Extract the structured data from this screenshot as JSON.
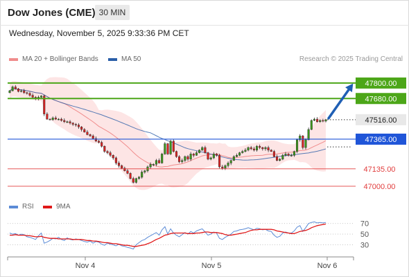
{
  "header": {
    "title": "Dow Jones (CME)",
    "timeframe": "30 MIN",
    "datetime": "Wednesday, November 5, 2025 9:33:36 PM CET"
  },
  "legend": {
    "items": [
      {
        "label": "MA 20 + Bollinger Bands",
        "color": "#f08c8c"
      },
      {
        "label": "MA 50",
        "color": "#2a5ea8"
      }
    ],
    "research": "Research © 2025 Trading Central"
  },
  "rsi_legend": {
    "items": [
      {
        "label": "RSI",
        "color": "#5b8bd6"
      },
      {
        "label": "9MA",
        "color": "#e01919"
      }
    ]
  },
  "chart_data": [
    {
      "type": "candlestick",
      "ylim": [
        46930,
        47880
      ],
      "x_labels": [
        "Nov 4",
        "Nov 5",
        "Nov 6"
      ],
      "levels": [
        {
          "label": "47800.00",
          "value": 47800,
          "style": "resistance",
          "color": "#4ca618"
        },
        {
          "label": "47680.00",
          "value": 47680,
          "style": "resistance",
          "color": "#4ca618"
        },
        {
          "label": "47516.00",
          "value": 47516,
          "style": "current",
          "color": "#333333"
        },
        {
          "label": "47365.00",
          "value": 47365,
          "style": "pivot",
          "color": "#1f55d8"
        },
        {
          "label": "47135.00",
          "value": 47135,
          "style": "support",
          "color": "#e13c3c"
        },
        {
          "label": "47000.00",
          "value": 47000,
          "style": "support",
          "color": "#e13c3c"
        }
      ],
      "closes": [
        47740,
        47770,
        47755,
        47735,
        47740,
        47725,
        47720,
        47705,
        47690,
        47680,
        47690,
        47700,
        47560,
        47520,
        47515,
        47530,
        47520,
        47520,
        47510,
        47500,
        47500,
        47490,
        47480,
        47475,
        47460,
        47440,
        47420,
        47400,
        47390,
        47370,
        47350,
        47340,
        47310,
        47270,
        47260,
        47240,
        47220,
        47180,
        47160,
        47140,
        47120,
        47100,
        47060,
        47030,
        47060,
        47070,
        47110,
        47120,
        47150,
        47170,
        47170,
        47200,
        47180,
        47250,
        47330,
        47250,
        47350,
        47270,
        47230,
        47190,
        47200,
        47230,
        47210,
        47250,
        47240,
        47260,
        47280,
        47300,
        47260,
        47210,
        47220,
        47250,
        47240,
        47150,
        47140,
        47160,
        47180,
        47200,
        47230,
        47240,
        47260,
        47270,
        47280,
        47300,
        47290,
        47280,
        47310,
        47300,
        47290,
        47300,
        47280,
        47270,
        47230,
        47200,
        47210,
        47240,
        47250,
        47240,
        47240,
        47270,
        47360,
        47390,
        47300,
        47360,
        47440,
        47510,
        47520,
        47500,
        47510,
        47505,
        47516
      ],
      "forecast_arrow": {
        "from": 47516,
        "to": 47800
      }
    },
    {
      "type": "line",
      "title": "RSI",
      "ylim": [
        15,
        80
      ],
      "y_ticks": [
        30,
        50,
        70
      ],
      "series": [
        {
          "name": "RSI",
          "values": [
            52,
            50,
            51,
            48,
            50,
            49,
            45,
            44,
            42,
            40,
            47,
            52,
            33,
            35,
            38,
            42,
            41,
            44,
            40,
            38,
            43,
            40,
            39,
            41,
            40,
            38,
            36,
            35,
            37,
            33,
            36,
            35,
            31,
            29,
            33,
            31,
            30,
            28,
            31,
            28,
            27,
            25,
            24,
            22,
            30,
            34,
            38,
            40,
            44,
            47,
            50,
            53,
            48,
            58,
            64,
            50,
            60,
            52,
            48,
            45,
            49,
            53,
            50,
            55,
            52,
            56,
            58,
            60,
            54,
            48,
            50,
            54,
            52,
            42,
            40,
            44,
            47,
            50,
            55,
            56,
            58,
            59,
            60,
            62,
            60,
            58,
            61,
            60,
            58,
            59,
            56,
            55,
            48,
            44,
            46,
            52,
            54,
            52,
            52,
            56,
            63,
            66,
            55,
            62,
            70,
            72,
            73,
            71,
            72,
            71,
            72
          ]
        },
        {
          "name": "9MA",
          "values": [
            48,
            48,
            49,
            48,
            48,
            48,
            47,
            47,
            46,
            45,
            45,
            46,
            44,
            43,
            42,
            42,
            42,
            41,
            41,
            41,
            41,
            41,
            40,
            40,
            40,
            40,
            39,
            38,
            38,
            37,
            37,
            36,
            35,
            34,
            34,
            33,
            32,
            32,
            31,
            30,
            29,
            29,
            28,
            27,
            27,
            28,
            29,
            30,
            32,
            34,
            37,
            40,
            42,
            45,
            48,
            49,
            51,
            52,
            52,
            52,
            52,
            52,
            51,
            51,
            51,
            52,
            52,
            53,
            54,
            54,
            53,
            53,
            53,
            52,
            51,
            49,
            48,
            48,
            49,
            50,
            51,
            52,
            53,
            55,
            57,
            58,
            58,
            59,
            59,
            59,
            59,
            59,
            58,
            56,
            55,
            54,
            53,
            52,
            51,
            51,
            53,
            55,
            56,
            57,
            59,
            62,
            64,
            66,
            67,
            68,
            69
          ]
        }
      ]
    }
  ]
}
